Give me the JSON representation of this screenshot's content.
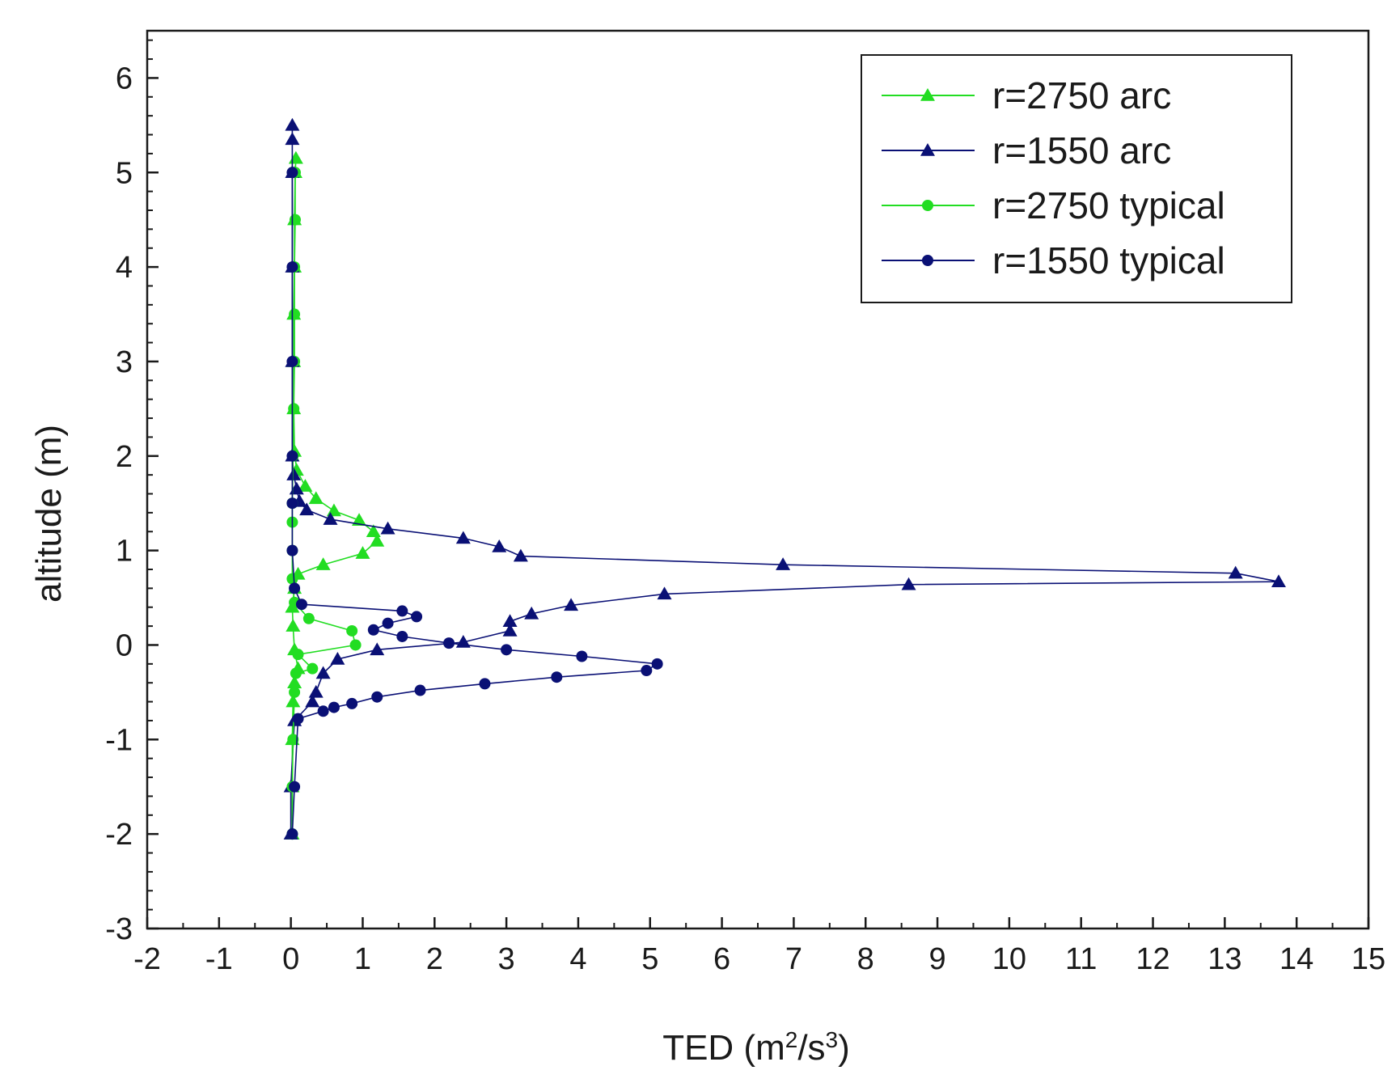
{
  "chart_data": {
    "type": "scatter",
    "title": "",
    "xlabel": "TED (m²/s³)",
    "xlabel_parts": {
      "base": "TED (m",
      "sup1": "2",
      "mid": "/s",
      "sup2": "3",
      "end": ")"
    },
    "ylabel": "altitude (m)",
    "xlim": [
      -2,
      15
    ],
    "ylim": [
      -3,
      6.5
    ],
    "xticks": [
      -2,
      -1,
      0,
      1,
      2,
      3,
      4,
      5,
      6,
      7,
      8,
      9,
      10,
      11,
      12,
      13,
      14,
      15
    ],
    "yticks": [
      -3,
      -2,
      -1,
      0,
      1,
      2,
      3,
      4,
      5,
      6
    ],
    "grid": false,
    "legend_position": "top-right",
    "series": [
      {
        "name": "r=2750 arc",
        "color": "#22dd22",
        "marker": "triangle",
        "points": [
          [
            0.02,
            -2.0
          ],
          [
            0.02,
            -1.5
          ],
          [
            0.02,
            -1.0
          ],
          [
            0.03,
            -0.6
          ],
          [
            0.05,
            -0.4
          ],
          [
            0.1,
            -0.25
          ],
          [
            0.05,
            -0.05
          ],
          [
            0.03,
            0.2
          ],
          [
            0.02,
            0.4
          ],
          [
            0.05,
            0.6
          ],
          [
            0.1,
            0.75
          ],
          [
            0.45,
            0.85
          ],
          [
            1.0,
            0.97
          ],
          [
            1.2,
            1.1
          ],
          [
            1.15,
            1.2
          ],
          [
            0.95,
            1.32
          ],
          [
            0.6,
            1.42
          ],
          [
            0.35,
            1.55
          ],
          [
            0.2,
            1.68
          ],
          [
            0.08,
            1.85
          ],
          [
            0.05,
            2.05
          ],
          [
            0.04,
            2.5
          ],
          [
            0.04,
            3.0
          ],
          [
            0.04,
            3.5
          ],
          [
            0.05,
            4.0
          ],
          [
            0.05,
            4.5
          ],
          [
            0.06,
            5.0
          ],
          [
            0.07,
            5.15
          ]
        ]
      },
      {
        "name": "r=1550 arc",
        "color": "#0a1075",
        "marker": "triangle",
        "points": [
          [
            0.0,
            -2.0
          ],
          [
            0.0,
            -1.5
          ],
          [
            0.05,
            -0.8
          ],
          [
            0.3,
            -0.6
          ],
          [
            0.35,
            -0.5
          ],
          [
            0.45,
            -0.3
          ],
          [
            0.65,
            -0.15
          ],
          [
            1.2,
            -0.05
          ],
          [
            2.4,
            0.03
          ],
          [
            3.05,
            0.15
          ],
          [
            3.05,
            0.25
          ],
          [
            3.35,
            0.33
          ],
          [
            3.9,
            0.42
          ],
          [
            5.2,
            0.54
          ],
          [
            8.6,
            0.64
          ],
          [
            13.75,
            0.67
          ],
          [
            13.15,
            0.76
          ],
          [
            6.85,
            0.85
          ],
          [
            3.2,
            0.94
          ],
          [
            2.9,
            1.04
          ],
          [
            2.4,
            1.13
          ],
          [
            1.35,
            1.23
          ],
          [
            0.55,
            1.33
          ],
          [
            0.22,
            1.43
          ],
          [
            0.12,
            1.52
          ],
          [
            0.08,
            1.65
          ],
          [
            0.04,
            1.8
          ],
          [
            0.02,
            2.0
          ],
          [
            0.02,
            3.0
          ],
          [
            0.02,
            4.0
          ],
          [
            0.02,
            5.0
          ],
          [
            0.02,
            5.35
          ],
          [
            0.02,
            5.5
          ]
        ]
      },
      {
        "name": "r=2750 typical",
        "color": "#22dd22",
        "marker": "circle",
        "points": [
          [
            0.02,
            -2.0
          ],
          [
            0.02,
            -1.5
          ],
          [
            0.03,
            -1.0
          ],
          [
            0.05,
            -0.5
          ],
          [
            0.07,
            -0.3
          ],
          [
            0.3,
            -0.25
          ],
          [
            0.1,
            -0.1
          ],
          [
            0.9,
            0.0
          ],
          [
            0.85,
            0.15
          ],
          [
            0.25,
            0.28
          ],
          [
            0.05,
            0.45
          ],
          [
            0.02,
            0.7
          ],
          [
            0.02,
            1.0
          ],
          [
            0.02,
            1.3
          ],
          [
            0.02,
            1.5
          ],
          [
            0.03,
            2.0
          ],
          [
            0.04,
            2.5
          ],
          [
            0.05,
            3.0
          ],
          [
            0.05,
            3.5
          ],
          [
            0.05,
            4.0
          ],
          [
            0.06,
            4.5
          ],
          [
            0.06,
            5.0
          ]
        ]
      },
      {
        "name": "r=1550 typical",
        "color": "#0a1075",
        "marker": "circle",
        "points": [
          [
            0.02,
            -2.0
          ],
          [
            0.05,
            -1.5
          ],
          [
            0.1,
            -0.78
          ],
          [
            0.45,
            -0.7
          ],
          [
            0.6,
            -0.66
          ],
          [
            0.85,
            -0.62
          ],
          [
            1.2,
            -0.55
          ],
          [
            1.8,
            -0.48
          ],
          [
            2.7,
            -0.41
          ],
          [
            3.7,
            -0.34
          ],
          [
            4.95,
            -0.27
          ],
          [
            5.1,
            -0.2
          ],
          [
            4.05,
            -0.12
          ],
          [
            3.0,
            -0.05
          ],
          [
            2.2,
            0.02
          ],
          [
            1.55,
            0.09
          ],
          [
            1.15,
            0.16
          ],
          [
            1.35,
            0.23
          ],
          [
            1.75,
            0.3
          ],
          [
            1.55,
            0.36
          ],
          [
            0.15,
            0.43
          ],
          [
            0.05,
            0.6
          ],
          [
            0.02,
            1.0
          ],
          [
            0.02,
            1.5
          ],
          [
            0.02,
            2.0
          ],
          [
            0.02,
            3.0
          ],
          [
            0.02,
            4.0
          ],
          [
            0.02,
            5.0
          ]
        ]
      }
    ]
  }
}
